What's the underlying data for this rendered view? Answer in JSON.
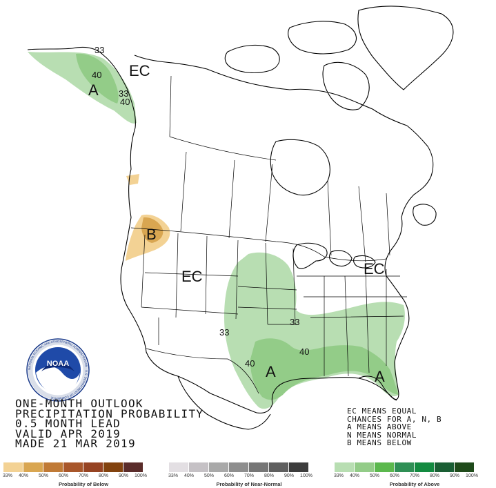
{
  "map_labels": {
    "ec_alaska": "EC",
    "ec_west": "EC",
    "ec_east": "EC",
    "a_alaska": "A",
    "a_texas": "A",
    "a_florida": "A",
    "b_northwest": "B",
    "c33_alaska_a": "33",
    "c40_alaska": "40",
    "c33_alaska_b": "33",
    "c40_alaska_b": "40",
    "c33_plains": "33",
    "c40_texas": "40",
    "c33_southeast": "33",
    "c40_gulf": "40"
  },
  "title_block": {
    "line1": "ONE-MONTH OUTLOOK",
    "line2": "PRECIPITATION PROBABILITY",
    "line3": "0.5 MONTH LEAD",
    "line4": "VALID APR 2019",
    "line5": "MADE 21 MAR 2019"
  },
  "ec_legend": {
    "line1": "EC MEANS EQUAL",
    "line2": "CHANCES FOR A, N, B",
    "line3": "A MEANS ABOVE",
    "line4": "N MEANS NORMAL",
    "line5": "B MEANS BELOW"
  },
  "logo": {
    "text": "NOAA",
    "ring_text": "NATIONAL OCEANIC AND ATMOSPHERIC ADMINISTRATION · U.S. DEPARTMENT OF COMMERCE"
  },
  "colors": {
    "above": [
      "#b8deb2",
      "#93cc88",
      "#5bb84d",
      "#2f8f55",
      "#138a40",
      "#1a5e34",
      "#1f4a1a"
    ],
    "below": [
      "#f3d294",
      "#d9a651",
      "#c07a36",
      "#a8562a",
      "#964322",
      "#82420e",
      "#5a2c2a"
    ],
    "normal": [
      "#e3dfe3",
      "#c5c1c5",
      "#a9a9a9",
      "#8e8e8e",
      "#767676",
      "#5f5f5f",
      "#3c3c3c"
    ],
    "above_shade_33": "#b8deb2",
    "above_shade_40": "#93cc88",
    "below_shade_33": "#f3d294",
    "below_shade_40": "#d9a651"
  },
  "scale": {
    "below": {
      "ticks": [
        "33%",
        "40%",
        "50%",
        "60%",
        "70%",
        "80%",
        "90%",
        "100%"
      ],
      "title": "Probability of Below"
    },
    "normal": {
      "ticks": [
        "33%",
        "40%",
        "50%",
        "60%",
        "70%",
        "80%",
        "90%",
        "100%"
      ],
      "title": "Probability of Near-Normal"
    },
    "above": {
      "ticks": [
        "33%",
        "40%",
        "50%",
        "60%",
        "70%",
        "80%",
        "90%",
        "100%"
      ],
      "title": "Probability of Above"
    }
  }
}
